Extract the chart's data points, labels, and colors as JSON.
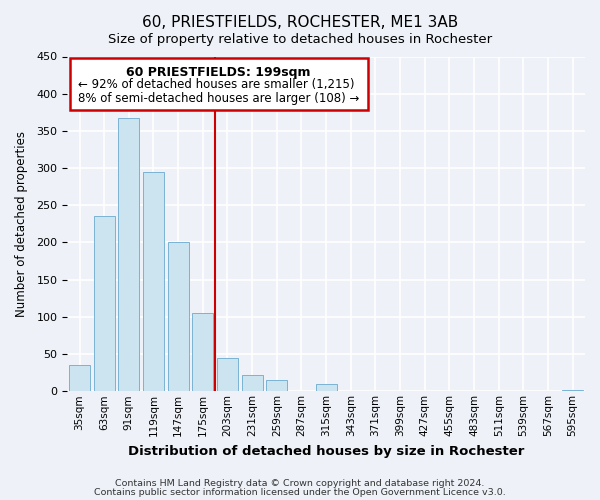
{
  "title": "60, PRIESTFIELDS, ROCHESTER, ME1 3AB",
  "subtitle": "Size of property relative to detached houses in Rochester",
  "xlabel": "Distribution of detached houses by size in Rochester",
  "ylabel": "Number of detached properties",
  "bar_labels": [
    "35sqm",
    "63sqm",
    "91sqm",
    "119sqm",
    "147sqm",
    "175sqm",
    "203sqm",
    "231sqm",
    "259sqm",
    "287sqm",
    "315sqm",
    "343sqm",
    "371sqm",
    "399sqm",
    "427sqm",
    "455sqm",
    "483sqm",
    "511sqm",
    "539sqm",
    "567sqm",
    "595sqm"
  ],
  "bar_values": [
    35,
    235,
    367,
    295,
    200,
    105,
    45,
    22,
    15,
    0,
    10,
    0,
    0,
    0,
    0,
    0,
    0,
    0,
    0,
    0,
    2
  ],
  "bar_color": "#cce4f0",
  "bar_edge_color": "#7ab3d4",
  "vline_x": 6,
  "vline_color": "#cc0000",
  "annotation_title": "60 PRIESTFIELDS: 199sqm",
  "annotation_line1": "← 92% of detached houses are smaller (1,215)",
  "annotation_line2": "8% of semi-detached houses are larger (108) →",
  "annotation_box_edge": "#cc0000",
  "ylim": [
    0,
    450
  ],
  "yticks": [
    0,
    50,
    100,
    150,
    200,
    250,
    300,
    350,
    400,
    450
  ],
  "footer1": "Contains HM Land Registry data © Crown copyright and database right 2024.",
  "footer2": "Contains public sector information licensed under the Open Government Licence v3.0.",
  "background_color": "#eef2f8"
}
